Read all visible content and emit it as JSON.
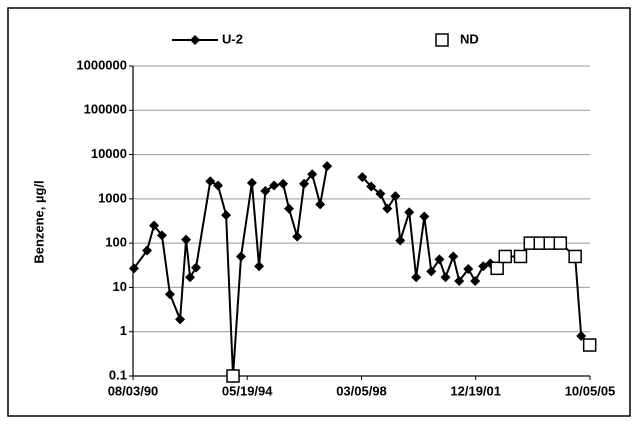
{
  "chart_data": {
    "type": "line",
    "ylabel": "Benzene, µg/l",
    "yscale": "log",
    "grid": true,
    "legend": "top",
    "x": [
      "1990-08-15",
      "1991-01-20",
      "1991-04-15",
      "1991-07-20",
      "1991-10-25",
      "1992-02-25",
      "1992-05-08",
      "1992-06-25",
      "1992-09-05",
      "1993-02-25",
      "1993-05-30",
      "1993-09-05",
      "1993-11-28",
      "1994-03-05",
      "1994-07-15",
      "1994-10-10",
      "1994-12-25",
      "1995-04-10",
      "1995-07-28",
      "1995-10-08",
      "1996-01-15",
      "1996-04-08",
      "1996-07-15",
      "1996-10-20",
      "1997-01-12",
      "1997-07-01",
      "1998-03-15",
      "1998-07-01",
      "1998-10-20",
      "1999-01-12",
      "1999-04-20",
      "1999-06-18",
      "1999-10-05",
      "1999-12-28",
      "2000-04-05",
      "2000-06-28",
      "2000-10-05",
      "2000-12-18",
      "2001-03-22",
      "2001-06-02",
      "2001-09-20",
      "2001-12-12",
      "2002-03-20",
      "2002-06-15",
      "2002-09-05",
      "2002-12-12",
      "2003-06-15",
      "2003-10-12",
      "2004-02-10",
      "2004-06-10",
      "2004-10-10",
      "2005-04-08",
      "2005-06-20",
      "2005-10-01"
    ],
    "series": [
      {
        "name": "U-2",
        "color": "#000000",
        "values": [
          27,
          68,
          250,
          150,
          7,
          1.9,
          120,
          17,
          28,
          2500,
          2000,
          430,
          0.1,
          50,
          2300,
          30,
          1500,
          2000,
          2200,
          600,
          140,
          2200,
          3600,
          750,
          5500,
          null,
          3100,
          1900,
          1300,
          600,
          1150,
          115,
          500,
          17,
          400,
          23,
          43,
          17,
          50,
          14,
          26,
          14,
          30,
          35,
          27,
          50,
          50,
          100,
          100,
          100,
          100,
          50,
          0.8,
          0.5
        ]
      },
      {
        "name": "ND",
        "color": "#000000",
        "values": [
          null,
          null,
          null,
          null,
          null,
          null,
          null,
          null,
          null,
          null,
          null,
          null,
          0.1,
          null,
          null,
          null,
          null,
          null,
          null,
          null,
          null,
          null,
          null,
          null,
          null,
          null,
          null,
          null,
          null,
          null,
          null,
          null,
          null,
          null,
          null,
          null,
          null,
          null,
          null,
          null,
          null,
          null,
          null,
          null,
          27,
          50,
          50,
          100,
          100,
          100,
          100,
          50,
          null,
          0.5
        ]
      }
    ],
    "xlim": [
      "1990-08-03",
      "2005-10-05"
    ],
    "xticks": [
      {
        "value": "1990-08-03",
        "label": "08/03/90"
      },
      {
        "value": "1994-05-19",
        "label": "05/19/94"
      },
      {
        "value": "1998-03-05",
        "label": "03/05/98"
      },
      {
        "value": "2001-12-19",
        "label": "12/19/01"
      },
      {
        "value": "2005-10-05",
        "label": "10/05/05"
      }
    ],
    "ylim": [
      0.1,
      1000000
    ],
    "yticks": [
      0.1,
      1,
      10,
      100,
      1000,
      10000,
      100000,
      1000000
    ]
  }
}
